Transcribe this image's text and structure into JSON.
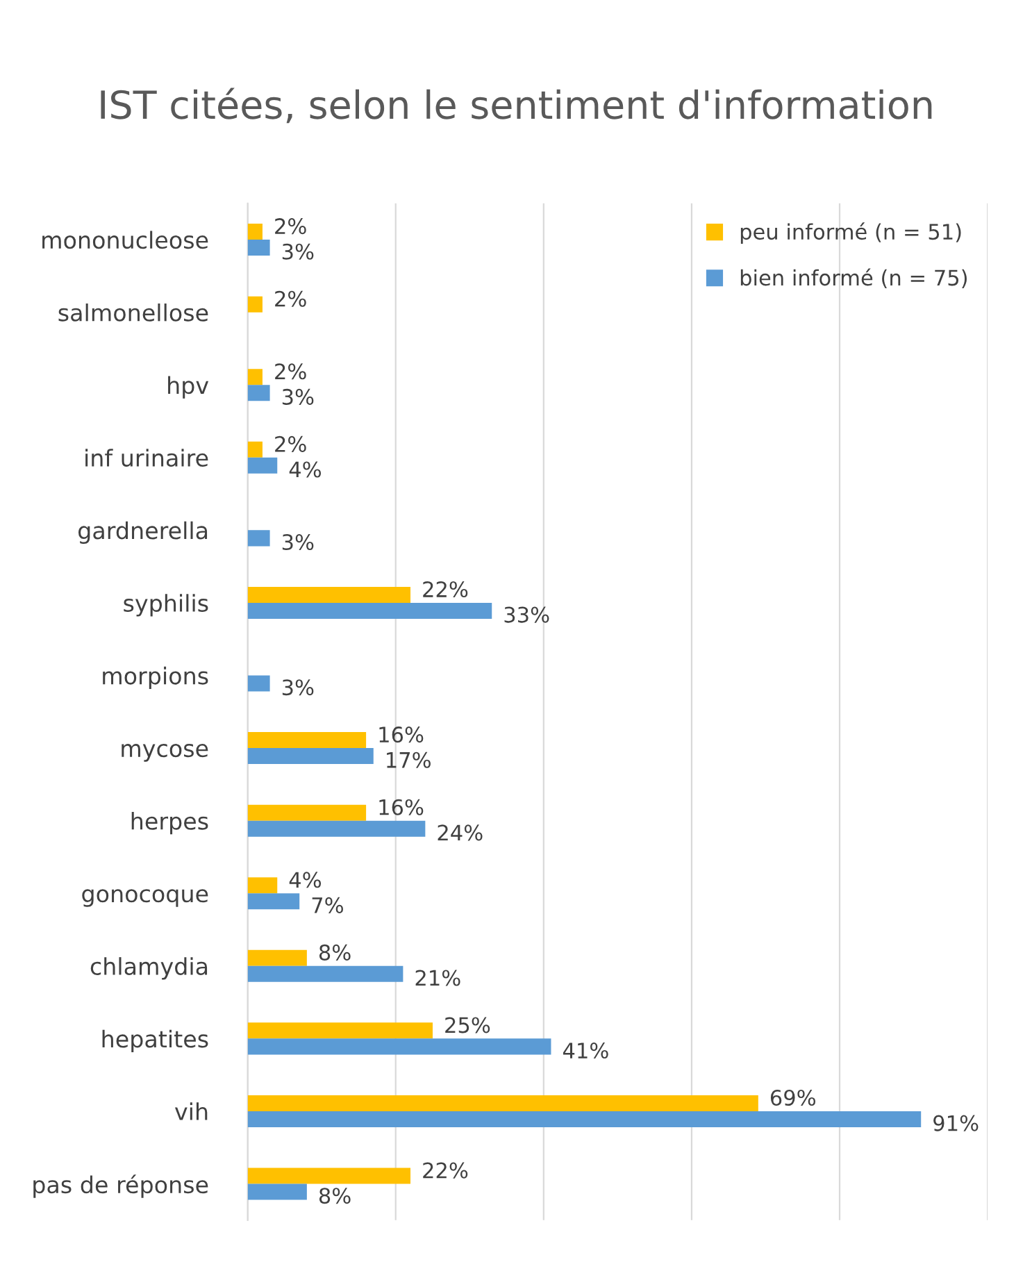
{
  "chart_data": {
    "type": "bar",
    "orientation": "horizontal",
    "title": "IST citées, selon le sentiment d'information",
    "categories": [
      "mononucleose",
      "salmonellose",
      "hpv",
      "inf urinaire",
      "gardnerella",
      "syphilis",
      "morpions",
      "mycose",
      "herpes",
      "gonocoque",
      "chlamydia",
      "hepatites",
      "vih",
      "pas de réponse"
    ],
    "series": [
      {
        "name": "peu informé (n = 51)",
        "color": "#ffc000",
        "values": [
          2,
          2,
          2,
          2,
          null,
          22,
          null,
          16,
          16,
          4,
          8,
          25,
          69,
          22
        ],
        "value_labels": [
          "2%",
          "2%",
          "2%",
          "2%",
          null,
          "22%",
          null,
          "16%",
          "16%",
          "4%",
          "8%",
          "25%",
          "69%",
          "22%"
        ]
      },
      {
        "name": "bien informé (n = 75)",
        "color": "#5b9bd5",
        "values": [
          3,
          null,
          3,
          4,
          3,
          33,
          3,
          17,
          24,
          7,
          21,
          41,
          91,
          8
        ],
        "value_labels": [
          "3%",
          null,
          "3%",
          "4%",
          "3%",
          "33%",
          "3%",
          "17%",
          "24%",
          "7%",
          "21%",
          "41%",
          "91%",
          "8%"
        ]
      }
    ],
    "xlim": [
      0,
      100
    ],
    "xticks": [
      {
        "value": 0,
        "label": null
      },
      {
        "value": 20,
        "label": null
      },
      {
        "value": 40,
        "label": null
      },
      {
        "value": 60,
        "label": null
      },
      {
        "value": 80,
        "label": null
      },
      {
        "value": 100,
        "label": null
      }
    ],
    "tick_labels": "y",
    "grid": "x",
    "legend": "top right"
  }
}
